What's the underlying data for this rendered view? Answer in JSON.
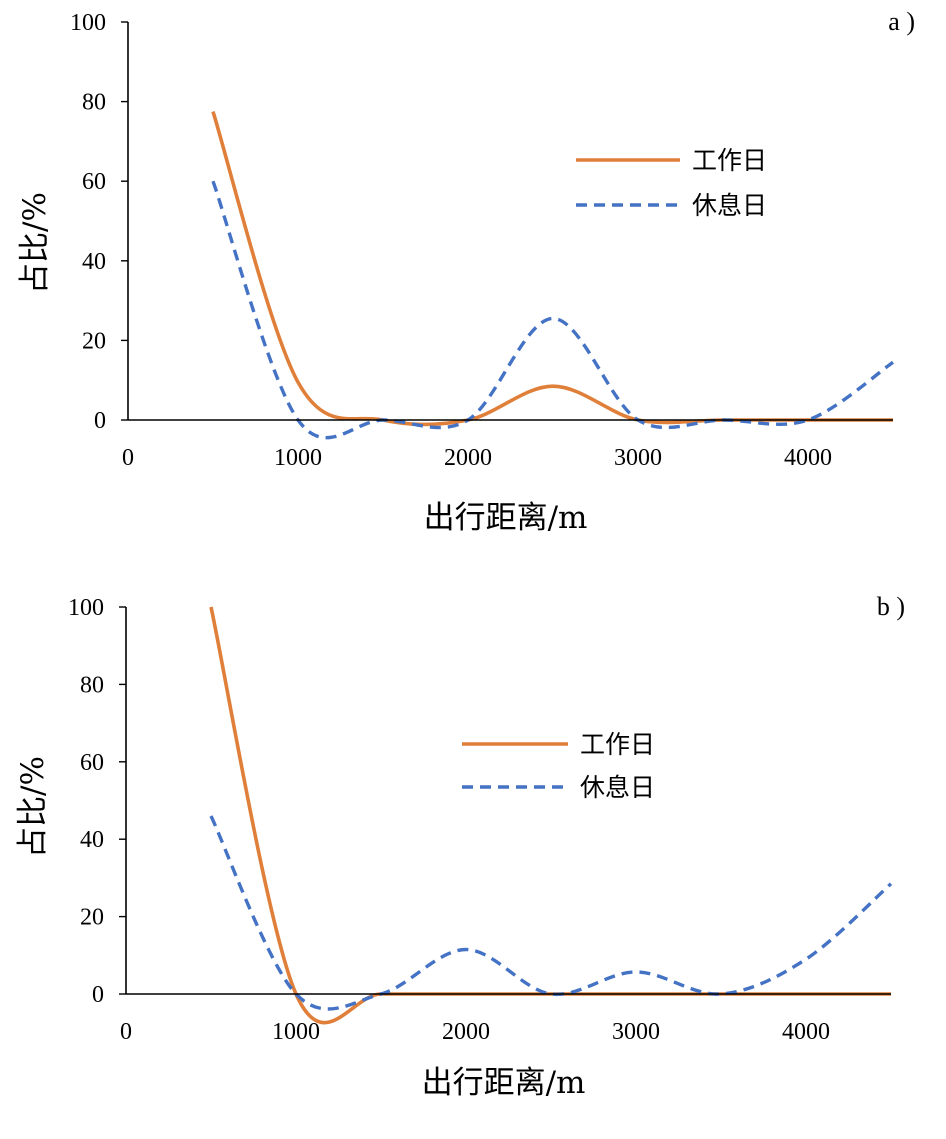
{
  "colors": {
    "workday": "#E07F39",
    "restday": "#4472C4",
    "axis": "#000000"
  },
  "chart_data": [
    {
      "type": "line",
      "panel_label": "a )",
      "xlabel": "出行距离/m",
      "ylabel": "占比/%",
      "xlim": [
        0,
        4500
      ],
      "ylim": [
        0,
        100
      ],
      "x_ticks": [
        "0",
        "1000",
        "2000",
        "3000",
        "4000"
      ],
      "y_ticks": [
        "0",
        "20",
        "40",
        "60",
        "80",
        "100"
      ],
      "legend_position": "center-right",
      "x": [
        500,
        1000,
        1500,
        2000,
        2500,
        3000,
        3500,
        4000,
        4500
      ],
      "series": [
        {
          "name": "工作日",
          "style": "solid",
          "values": [
            77.5,
            9.5,
            0,
            0,
            8.5,
            0,
            0,
            0,
            0
          ]
        },
        {
          "name": "休息日",
          "style": "dashed",
          "values": [
            60,
            0,
            0,
            0,
            25.5,
            0,
            0,
            0,
            14.5
          ]
        }
      ]
    },
    {
      "type": "line",
      "panel_label": "b )",
      "xlabel": "出行距离/m",
      "ylabel": "占比/%",
      "xlim": [
        0,
        4500
      ],
      "ylim": [
        0,
        100
      ],
      "x_ticks": [
        "0",
        "1000",
        "2000",
        "3000",
        "4000"
      ],
      "y_ticks": [
        "0",
        "20",
        "40",
        "60",
        "80",
        "100"
      ],
      "legend_position": "center",
      "x": [
        500,
        1000,
        1500,
        2000,
        2500,
        3000,
        3500,
        4000,
        4500
      ],
      "series": [
        {
          "name": "工作日",
          "style": "solid",
          "values": [
            100,
            0,
            0,
            0,
            0,
            0,
            0,
            0,
            0
          ]
        },
        {
          "name": "休息日",
          "style": "dashed",
          "values": [
            46,
            0,
            0,
            11.5,
            0,
            5.7,
            0,
            9,
            28.5
          ]
        }
      ]
    }
  ]
}
